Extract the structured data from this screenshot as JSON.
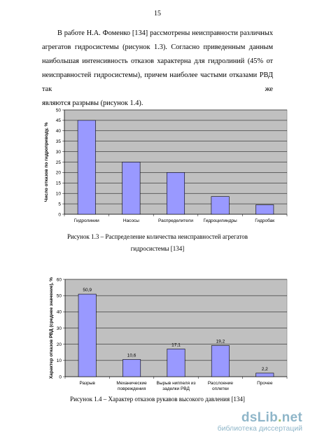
{
  "page": {
    "number": "15",
    "paragraph": [
      "В работе Н.А. Фоменко [134] рассмотрены неисправности различных",
      "агрегатов гидросистемы (рисунок 1.3). Согласно приведенным данным",
      "наибольшая интенсивность отказов характерна для гидролиний (45% от",
      "неисправностей гидросистемы), причем наиболее частыми отказами РВД так же",
      "являются разрывы (рисунок 1.4)."
    ],
    "caption1": [
      "Рисунок 1.3 – Распределение количества неисправностей агрегатов",
      "гидросистемы [134]"
    ],
    "caption2": "Рисунок 1.4 – Характер отказов рукавов высокого давления [134]"
  },
  "watermark": {
    "logo_main": "dsLib",
    "logo_dot": ".",
    "logo_tld": "net",
    "subtitle": "библиотека диссертаций"
  },
  "chart_data": [
    {
      "type": "bar",
      "title": "",
      "ylabel": "Число отказов по гидроприводу, %",
      "xlabel": "",
      "categories": [
        "Гидролинии",
        "Насосы",
        "Распределители",
        "Гидроцилиндры",
        "Гидробак"
      ],
      "values": [
        45,
        25,
        20,
        8.5,
        4.5
      ],
      "ylim": [
        0,
        50
      ],
      "yticks": [
        "0",
        "5",
        "10",
        "15",
        "20",
        "25",
        "30",
        "35",
        "40",
        "45",
        "50"
      ],
      "grid": true,
      "colors": {
        "bar": "#9999ff",
        "plot_bg": "#c0c0c0"
      }
    },
    {
      "type": "bar",
      "title": "",
      "ylabel": "Характер отказов РВД (среднее значение), %",
      "xlabel": "",
      "categories": [
        [
          "Разрыв"
        ],
        [
          "Механические",
          "повреждения"
        ],
        [
          "Вырыв ниппеля из",
          "заделки РВД"
        ],
        [
          "Расслоение",
          "оплетки"
        ],
        [
          "Прочее"
        ]
      ],
      "values": [
        50.9,
        10.6,
        17.1,
        19.2,
        2.2
      ],
      "data_labels": [
        "50,9",
        "10,6",
        "17,1",
        "19,2",
        "2,2"
      ],
      "ylim": [
        0,
        60
      ],
      "yticks": [
        "0",
        "10",
        "20",
        "30",
        "40",
        "50",
        "60"
      ],
      "grid": true,
      "colors": {
        "bar": "#9999ff",
        "plot_bg": "#c0c0c0"
      }
    }
  ]
}
